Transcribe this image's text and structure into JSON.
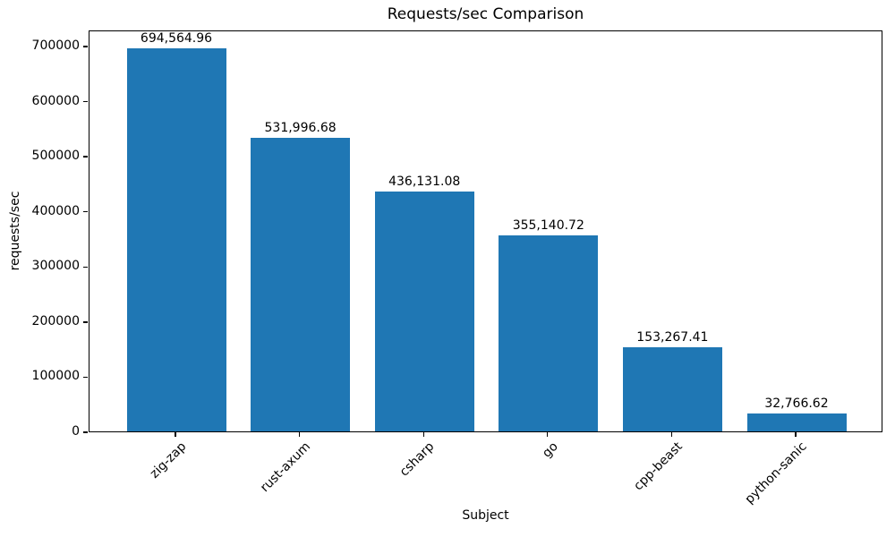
{
  "chart_data": {
    "type": "bar",
    "title": "Requests/sec Comparison",
    "xlabel": "Subject",
    "ylabel": "requests/sec",
    "categories": [
      "zig-zap",
      "rust-axum",
      "csharp",
      "go",
      "cpp-beast",
      "python-sanic"
    ],
    "values": [
      694564.96,
      531996.68,
      436131.08,
      355140.72,
      153267.41,
      32766.62
    ],
    "value_labels": [
      "694,564.96",
      "531,996.68",
      "436,131.08",
      "355,140.72",
      "153,267.41",
      "32,766.62"
    ],
    "bar_color": "#1f77b4",
    "ylim": [
      0,
      729293
    ],
    "yticks": [
      0,
      100000,
      200000,
      300000,
      400000,
      500000,
      600000,
      700000
    ],
    "ytick_labels": [
      "0",
      "100000",
      "200000",
      "300000",
      "400000",
      "500000",
      "600000",
      "700000"
    ],
    "xtick_rotation_deg": 45,
    "grid": false,
    "legend_position": "none"
  }
}
